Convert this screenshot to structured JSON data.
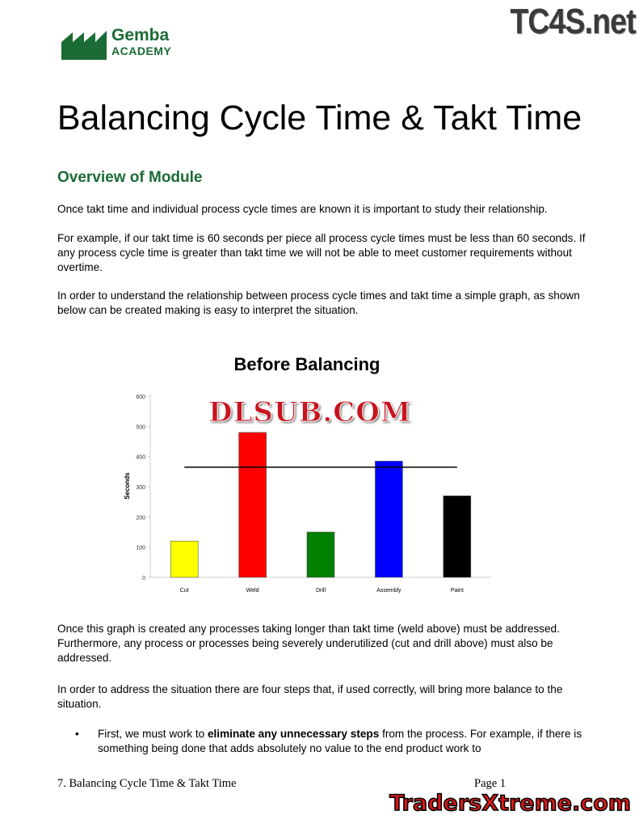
{
  "header": {
    "logo_line1": "Gemba",
    "logo_line2": "ACADEMY",
    "watermark_top": "TC4S.net"
  },
  "title": "Balancing Cycle Time & Takt Time",
  "section_heading": "Overview of Module",
  "paragraphs": [
    "Once takt time and individual process cycle times are known it is important to study their relationship.",
    "For example, if our takt time is 60 seconds per piece all process cycle times must be less than 60 seconds.  If any process cycle time is greater than takt time we will not be able to meet customer requirements without overtime.",
    "In order to understand the relationship between process cycle times and takt time a simple graph, as shown below can be created making is easy to interpret the situation.",
    "Once this graph is created any processes taking longer than takt time (weld above) must be addressed. Furthermore, any process or processes being severely underutilized (cut and drill above) must also be addressed.",
    "In order to address the situation there are four steps that, if used correctly, will bring more balance to the situation."
  ],
  "bullet": {
    "before": "First, we must work to ",
    "bold": "eliminate any unnecessary steps",
    "after": " from the process.  For example, if there is something being done that adds absolutely no value to the end product work to"
  },
  "chart_watermark": "DLSUB.COM",
  "chart_data": {
    "type": "bar",
    "title": "Before Balancing",
    "ylabel": "Seconds",
    "xlabel": "",
    "categories": [
      "Cut",
      "Weld",
      "Drill",
      "Assembly",
      "Paint"
    ],
    "values": [
      120,
      480,
      150,
      385,
      270
    ],
    "colors": [
      "#ffff00",
      "#ff0000",
      "#008000",
      "#0000ff",
      "#000000"
    ],
    "ylim": [
      0,
      600
    ],
    "yticks": [
      "0",
      "100",
      "200",
      "300",
      "400",
      "500",
      "600"
    ],
    "takt_line": 365,
    "grid": false,
    "legend": "none"
  },
  "footer": {
    "left": "7. Balancing Cycle Time & Takt Time",
    "right": "Page 1",
    "watermark": "TradersXtreme.com"
  }
}
